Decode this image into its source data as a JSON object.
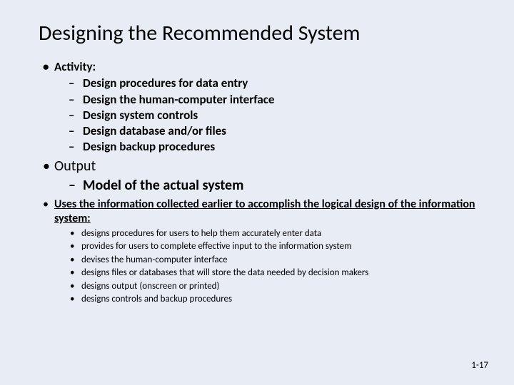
{
  "colors": {
    "background": "#e8ecf5",
    "text": "#000000"
  },
  "typography": {
    "title_fontsize": 30,
    "l1_bold_fontsize": 17,
    "l1_large_fontsize": 20,
    "l1_small_fontsize": 16,
    "l2_bold_fontsize": 17,
    "l2_large_fontsize": 20,
    "l3_fontsize": 13,
    "footer_fontsize": 13,
    "font_family": "Calibri"
  },
  "title": "Designing the Recommended System",
  "section1": {
    "heading": "Activity:",
    "items": [
      "Design procedures for data entry",
      "Design the human-computer interface",
      "Design system controls",
      "Design database and/or files",
      "Design backup procedures"
    ]
  },
  "section2": {
    "heading": "Output",
    "items": [
      "Model of the actual system"
    ]
  },
  "section3": {
    "heading": "Uses the information collected earlier to accomplish the logical design of the information system:",
    "items": [
      "designs procedures for users to help them accurately enter data",
      "provides for users to complete effective input to the information system",
      "devises the human-computer interface",
      "designs files or databases that will store the data needed by decision makers",
      "designs output (onscreen or printed)",
      "designs controls and backup procedures"
    ]
  },
  "footer": "1-17",
  "bullets": {
    "dot": "•",
    "dash": "–"
  }
}
